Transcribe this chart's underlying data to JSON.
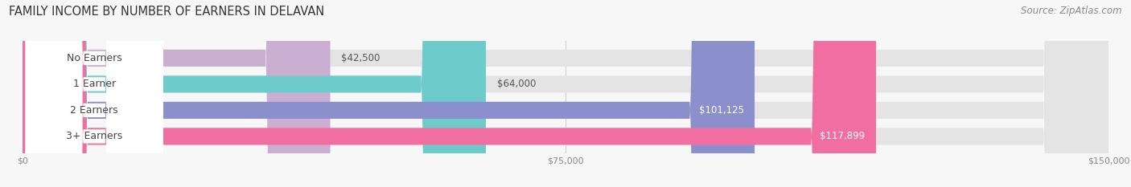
{
  "title": "FAMILY INCOME BY NUMBER OF EARNERS IN DELAVAN",
  "source": "Source: ZipAtlas.com",
  "categories": [
    "No Earners",
    "1 Earner",
    "2 Earners",
    "3+ Earners"
  ],
  "values": [
    42500,
    64000,
    101125,
    117899
  ],
  "value_labels": [
    "$42,500",
    "$64,000",
    "$101,125",
    "$117,899"
  ],
  "bar_colors": [
    "#c9aed1",
    "#6ecbcb",
    "#8b8fcc",
    "#f06fa0"
  ],
  "track_color": "#e4e4e4",
  "xlim": [
    0,
    150000
  ],
  "xtick_labels": [
    "$0",
    "$75,000",
    "$150,000"
  ],
  "title_fontsize": 10.5,
  "source_fontsize": 8.5,
  "label_fontsize": 9,
  "value_fontsize": 8.5,
  "background_color": "#f7f7f7",
  "bar_height": 0.65,
  "label_bg_color": "#ffffff"
}
